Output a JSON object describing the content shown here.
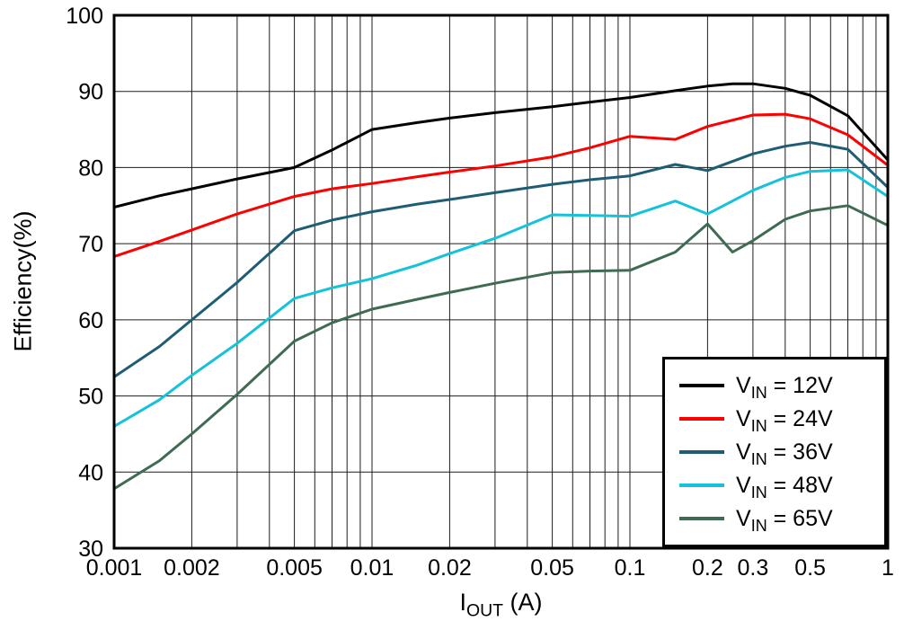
{
  "chart_data": {
    "type": "line",
    "title": "",
    "xlabel_main": "I",
    "xlabel_sub": "OUT",
    "xlabel_unit": " (A)",
    "ylabel": "Efficiency(%)",
    "x_scale": "log",
    "xlim": [
      0.001,
      1
    ],
    "ylim": [
      30,
      100
    ],
    "grid": "minor log vertical lines, major horizontal lines every 10",
    "legend_position": "lower right",
    "x_ticks": [
      {
        "value": 0.001,
        "label": "0.001"
      },
      {
        "value": 0.002,
        "label": "0.002"
      },
      {
        "value": 0.005,
        "label": "0.005"
      },
      {
        "value": 0.01,
        "label": "0.01"
      },
      {
        "value": 0.02,
        "label": "0.02"
      },
      {
        "value": 0.05,
        "label": "0.05"
      },
      {
        "value": 0.1,
        "label": "0.1"
      },
      {
        "value": 0.2,
        "label": "0.2"
      },
      {
        "value": 0.3,
        "label": "0.3"
      },
      {
        "value": 0.5,
        "label": "0.5"
      },
      {
        "value": 1,
        "label": "1"
      }
    ],
    "y_ticks": [
      {
        "value": 100,
        "label": "100"
      },
      {
        "value": 90,
        "label": "90"
      },
      {
        "value": 80,
        "label": "80"
      },
      {
        "value": 70,
        "label": "70"
      },
      {
        "value": 60,
        "label": "60"
      },
      {
        "value": 50,
        "label": "50"
      },
      {
        "value": 40,
        "label": "40"
      },
      {
        "value": 30,
        "label": "30"
      }
    ],
    "series": [
      {
        "id": "vin-12v",
        "label": "VIN = 12V",
        "label_main": "V",
        "label_sub": "IN",
        "label_rest": " = 12V",
        "color": "#000000",
        "points": [
          [
            0.001,
            74.8
          ],
          [
            0.0015,
            76.3
          ],
          [
            0.002,
            77.2
          ],
          [
            0.003,
            78.5
          ],
          [
            0.005,
            80.0
          ],
          [
            0.007,
            82.3
          ],
          [
            0.01,
            85.0
          ],
          [
            0.015,
            85.9
          ],
          [
            0.02,
            86.5
          ],
          [
            0.03,
            87.2
          ],
          [
            0.05,
            88.0
          ],
          [
            0.07,
            88.6
          ],
          [
            0.1,
            89.2
          ],
          [
            0.15,
            90.1
          ],
          [
            0.2,
            90.7
          ],
          [
            0.25,
            91.0
          ],
          [
            0.3,
            91.0
          ],
          [
            0.4,
            90.4
          ],
          [
            0.5,
            89.5
          ],
          [
            0.7,
            86.8
          ],
          [
            1,
            81.0
          ]
        ]
      },
      {
        "id": "vin-24v",
        "label": "VIN = 24V",
        "label_main": "V",
        "label_sub": "IN",
        "label_rest": " = 24V",
        "color": "#ff0000",
        "points": [
          [
            0.001,
            68.3
          ],
          [
            0.0015,
            70.3
          ],
          [
            0.002,
            71.8
          ],
          [
            0.003,
            73.9
          ],
          [
            0.005,
            76.2
          ],
          [
            0.007,
            77.2
          ],
          [
            0.01,
            77.9
          ],
          [
            0.015,
            78.8
          ],
          [
            0.02,
            79.4
          ],
          [
            0.03,
            80.2
          ],
          [
            0.05,
            81.4
          ],
          [
            0.07,
            82.6
          ],
          [
            0.1,
            84.1
          ],
          [
            0.15,
            83.7
          ],
          [
            0.2,
            85.4
          ],
          [
            0.3,
            86.9
          ],
          [
            0.4,
            87.0
          ],
          [
            0.5,
            86.4
          ],
          [
            0.7,
            84.3
          ],
          [
            1,
            80.3
          ]
        ]
      },
      {
        "id": "vin-36v",
        "label": "VIN = 36V",
        "label_main": "V",
        "label_sub": "IN",
        "label_rest": " = 36V",
        "color": "#1f5d75",
        "points": [
          [
            0.001,
            52.5
          ],
          [
            0.0015,
            56.5
          ],
          [
            0.002,
            60.0
          ],
          [
            0.003,
            64.9
          ],
          [
            0.005,
            71.7
          ],
          [
            0.007,
            73.1
          ],
          [
            0.01,
            74.2
          ],
          [
            0.015,
            75.2
          ],
          [
            0.02,
            75.8
          ],
          [
            0.03,
            76.7
          ],
          [
            0.05,
            77.8
          ],
          [
            0.07,
            78.4
          ],
          [
            0.1,
            78.9
          ],
          [
            0.15,
            80.4
          ],
          [
            0.2,
            79.6
          ],
          [
            0.3,
            81.8
          ],
          [
            0.4,
            82.8
          ],
          [
            0.5,
            83.3
          ],
          [
            0.7,
            82.4
          ],
          [
            1,
            77.4
          ]
        ]
      },
      {
        "id": "vin-48v",
        "label": "VIN = 48V",
        "label_main": "V",
        "label_sub": "IN",
        "label_rest": " = 48V",
        "color": "#15c2da",
        "points": [
          [
            0.001,
            46.0
          ],
          [
            0.0015,
            49.5
          ],
          [
            0.002,
            52.7
          ],
          [
            0.003,
            56.9
          ],
          [
            0.005,
            62.8
          ],
          [
            0.007,
            64.2
          ],
          [
            0.01,
            65.4
          ],
          [
            0.015,
            67.2
          ],
          [
            0.02,
            68.7
          ],
          [
            0.03,
            70.7
          ],
          [
            0.05,
            73.8
          ],
          [
            0.07,
            73.7
          ],
          [
            0.1,
            73.6
          ],
          [
            0.15,
            75.6
          ],
          [
            0.2,
            73.9
          ],
          [
            0.3,
            77.0
          ],
          [
            0.4,
            78.7
          ],
          [
            0.5,
            79.5
          ],
          [
            0.7,
            79.7
          ],
          [
            1,
            76.2
          ]
        ]
      },
      {
        "id": "vin-65v",
        "label": "VIN = 65V",
        "label_main": "V",
        "label_sub": "IN",
        "label_rest": " = 65V",
        "color": "#3e6b52",
        "points": [
          [
            0.001,
            37.8
          ],
          [
            0.0015,
            41.5
          ],
          [
            0.002,
            45.0
          ],
          [
            0.003,
            50.2
          ],
          [
            0.005,
            57.2
          ],
          [
            0.007,
            59.6
          ],
          [
            0.01,
            61.4
          ],
          [
            0.015,
            62.7
          ],
          [
            0.02,
            63.6
          ],
          [
            0.03,
            64.8
          ],
          [
            0.05,
            66.2
          ],
          [
            0.07,
            66.4
          ],
          [
            0.1,
            66.5
          ],
          [
            0.15,
            68.9
          ],
          [
            0.2,
            72.6
          ],
          [
            0.25,
            68.9
          ],
          [
            0.3,
            70.4
          ],
          [
            0.4,
            73.2
          ],
          [
            0.5,
            74.3
          ],
          [
            0.7,
            75.0
          ],
          [
            1,
            72.4
          ]
        ]
      }
    ]
  }
}
